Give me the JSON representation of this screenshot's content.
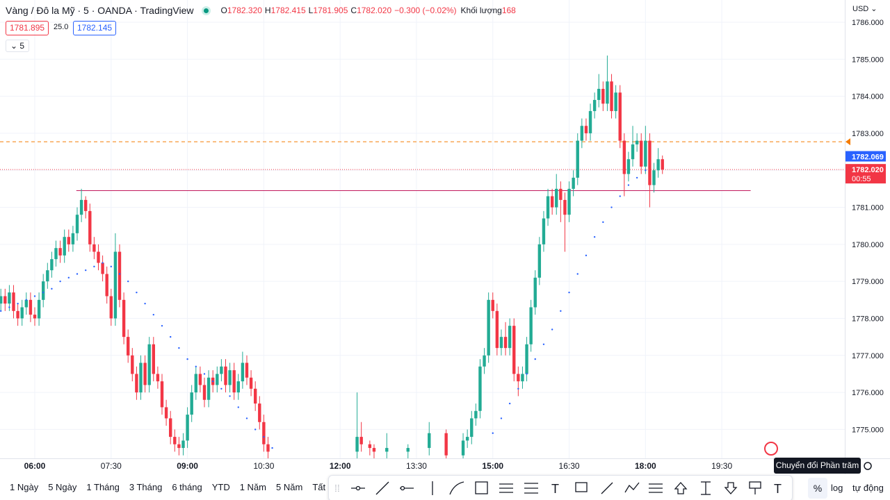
{
  "header": {
    "title": "Vàng / Đô la Mỹ · 5 · OANDA · TradingView",
    "ohlc": [
      {
        "key": "O",
        "value": "1782.320"
      },
      {
        "key": "H",
        "value": "1782.415"
      },
      {
        "key": "L",
        "value": "1781.905"
      },
      {
        "key": "C",
        "value": "1782.020"
      }
    ],
    "change": "−0.300 (−0.02%)",
    "volume_label": "Khối lượng",
    "volume": "168",
    "bid": "1781.895",
    "spread": "25.0",
    "ask": "1782.145",
    "interval": "5",
    "currency": "USD"
  },
  "chart_data": {
    "type": "candlestick",
    "up_color": "#22ab94",
    "down_color": "#f23645",
    "sar_color": "#2962ff",
    "xlim": [
      319,
      1315
    ],
    "xticks": [
      {
        "value": 360,
        "label": "06:00"
      },
      {
        "value": 450,
        "label": "07:30"
      },
      {
        "value": 540,
        "label": "09:00"
      },
      {
        "value": 630,
        "label": "10:30"
      },
      {
        "value": 720,
        "label": "12:00"
      },
      {
        "value": 810,
        "label": "13:30"
      },
      {
        "value": 900,
        "label": "15:00"
      },
      {
        "value": 990,
        "label": "16:30"
      },
      {
        "value": 1080,
        "label": "18:00"
      },
      {
        "value": 1170,
        "label": "19:30"
      }
    ],
    "ylim": [
      1774.22,
      1786.6
    ],
    "yticks": [
      {
        "value": 1775,
        "label": "1775.000"
      },
      {
        "value": 1776,
        "label": "1776.000"
      },
      {
        "value": 1777,
        "label": "1777.000"
      },
      {
        "value": 1778,
        "label": "1778.000"
      },
      {
        "value": 1779,
        "label": "1779.000"
      },
      {
        "value": 1780,
        "label": "1780.000"
      },
      {
        "value": 1781,
        "label": "1781.000"
      },
      {
        "value": 1782,
        "label": "1782.000"
      },
      {
        "value": 1783,
        "label": "1783.000"
      },
      {
        "value": 1784,
        "label": "1784.000"
      },
      {
        "value": 1785,
        "label": "1785.000"
      },
      {
        "value": 1786,
        "label": "1786.000"
      }
    ],
    "grid": true,
    "candles": [
      [
        320,
        1778.4,
        1778.8,
        1778.2,
        1778.6
      ],
      [
        325,
        1778.6,
        1778.8,
        1778.2,
        1778.4
      ],
      [
        330,
        1778.4,
        1778.9,
        1778.2,
        1778.7
      ],
      [
        335,
        1778.7,
        1778.9,
        1778.0,
        1778.2
      ],
      [
        340,
        1778.2,
        1778.4,
        1777.8,
        1778.0
      ],
      [
        345,
        1778.0,
        1778.5,
        1777.8,
        1778.3
      ],
      [
        350,
        1778.3,
        1778.7,
        1778.1,
        1778.5
      ],
      [
        355,
        1778.5,
        1778.7,
        1777.9,
        1778.1
      ],
      [
        360,
        1778.1,
        1778.3,
        1777.8,
        1778.0
      ],
      [
        365,
        1778.0,
        1778.7,
        1777.8,
        1778.5
      ],
      [
        370,
        1778.5,
        1779.2,
        1778.3,
        1779.0
      ],
      [
        375,
        1779.0,
        1779.5,
        1778.8,
        1779.3
      ],
      [
        380,
        1779.3,
        1779.8,
        1779.1,
        1779.6
      ],
      [
        385,
        1779.6,
        1780.1,
        1779.4,
        1779.9
      ],
      [
        390,
        1779.9,
        1780.1,
        1779.5,
        1779.7
      ],
      [
        395,
        1779.7,
        1780.4,
        1779.5,
        1780.2
      ],
      [
        400,
        1780.2,
        1780.4,
        1779.8,
        1780.0
      ],
      [
        405,
        1780.0,
        1780.5,
        1779.8,
        1780.3
      ],
      [
        410,
        1780.3,
        1781.0,
        1780.1,
        1780.8
      ],
      [
        415,
        1780.8,
        1781.5,
        1780.6,
        1781.2
      ],
      [
        420,
        1781.2,
        1781.3,
        1780.7,
        1780.9
      ],
      [
        425,
        1780.9,
        1781.1,
        1779.8,
        1780.0
      ],
      [
        430,
        1780.0,
        1780.2,
        1779.6,
        1779.8
      ],
      [
        435,
        1779.8,
        1780.0,
        1779.3,
        1779.5
      ],
      [
        440,
        1779.5,
        1779.7,
        1779.0,
        1779.2
      ],
      [
        445,
        1779.2,
        1779.4,
        1778.4,
        1778.6
      ],
      [
        450,
        1778.6,
        1778.8,
        1777.8,
        1778.0
      ],
      [
        455,
        1778.0,
        1780.3,
        1777.8,
        1779.8
      ],
      [
        460,
        1779.8,
        1780.0,
        1778.3,
        1778.5
      ],
      [
        465,
        1778.5,
        1778.7,
        1777.3,
        1777.5
      ],
      [
        470,
        1777.5,
        1777.7,
        1776.8,
        1777.0
      ],
      [
        475,
        1777.0,
        1777.2,
        1776.3,
        1776.5
      ],
      [
        480,
        1776.5,
        1776.7,
        1775.8,
        1776.0
      ],
      [
        485,
        1776.0,
        1777.0,
        1775.8,
        1776.8
      ],
      [
        490,
        1776.8,
        1777.0,
        1776.0,
        1776.2
      ],
      [
        495,
        1776.2,
        1777.5,
        1776.0,
        1777.3
      ],
      [
        500,
        1777.3,
        1777.5,
        1776.3,
        1776.5
      ],
      [
        505,
        1776.5,
        1776.7,
        1776.1,
        1776.3
      ],
      [
        510,
        1776.3,
        1776.5,
        1775.4,
        1775.6
      ],
      [
        515,
        1775.6,
        1775.8,
        1775.1,
        1775.3
      ],
      [
        520,
        1775.3,
        1775.5,
        1774.6,
        1774.8
      ],
      [
        525,
        1774.8,
        1775.0,
        1774.4,
        1774.6
      ],
      [
        530,
        1774.6,
        1774.8,
        1774.3,
        1774.5
      ],
      [
        535,
        1774.5,
        1774.9,
        1774.3,
        1774.7
      ],
      [
        540,
        1774.7,
        1775.6,
        1774.5,
        1775.4
      ],
      [
        545,
        1775.4,
        1776.2,
        1775.2,
        1776.0
      ],
      [
        550,
        1776.0,
        1776.7,
        1775.8,
        1776.5
      ],
      [
        555,
        1776.5,
        1776.7,
        1776.0,
        1776.2
      ],
      [
        560,
        1776.2,
        1776.4,
        1775.6,
        1775.8
      ],
      [
        565,
        1775.8,
        1776.6,
        1775.6,
        1776.4
      ],
      [
        570,
        1776.4,
        1776.6,
        1776.0,
        1776.2
      ],
      [
        575,
        1776.2,
        1776.7,
        1776.0,
        1776.5
      ],
      [
        580,
        1776.5,
        1776.9,
        1776.3,
        1776.7
      ],
      [
        585,
        1776.7,
        1776.9,
        1776.0,
        1776.2
      ],
      [
        590,
        1776.2,
        1776.8,
        1776.0,
        1776.6
      ],
      [
        595,
        1776.6,
        1776.8,
        1775.8,
        1776.0
      ],
      [
        600,
        1776.0,
        1776.5,
        1775.8,
        1776.3
      ],
      [
        605,
        1776.3,
        1777.1,
        1776.1,
        1776.8
      ],
      [
        610,
        1776.8,
        1777.0,
        1776.2,
        1776.4
      ],
      [
        615,
        1776.4,
        1776.6,
        1775.9,
        1776.1
      ],
      [
        620,
        1776.1,
        1776.3,
        1775.5,
        1775.7
      ],
      [
        625,
        1775.7,
        1775.9,
        1775.0,
        1775.2
      ],
      [
        630,
        1775.2,
        1775.4,
        1774.4,
        1774.6
      ],
      [
        635,
        1774.6,
        1774.8,
        1774.2,
        1774.4
      ],
      [
        740,
        1774.4,
        1776.0,
        1774.2,
        1774.8
      ],
      [
        745,
        1774.8,
        1775.2,
        1774.4,
        1774.6
      ],
      [
        755,
        1774.6,
        1774.7,
        1774.3,
        1774.5
      ],
      [
        760,
        1774.5,
        1774.6,
        1774.2,
        1774.4
      ],
      [
        775,
        1774.4,
        1774.9,
        1774.2,
        1774.5
      ],
      [
        800,
        1774.4,
        1774.6,
        1774.2,
        1774.5
      ],
      [
        825,
        1774.5,
        1775.2,
        1774.3,
        1774.9
      ],
      [
        845,
        1774.9,
        1775.0,
        1774.1,
        1774.3
      ],
      [
        865,
        1774.3,
        1774.9,
        1774.1,
        1774.7
      ],
      [
        870,
        1774.7,
        1775.0,
        1774.5,
        1774.8
      ],
      [
        875,
        1774.8,
        1775.5,
        1774.6,
        1775.3
      ],
      [
        880,
        1775.3,
        1775.7,
        1775.1,
        1775.5
      ],
      [
        885,
        1775.5,
        1776.9,
        1775.3,
        1776.7
      ],
      [
        890,
        1776.7,
        1777.2,
        1776.5,
        1777.0
      ],
      [
        895,
        1777.0,
        1778.7,
        1776.8,
        1778.5
      ],
      [
        900,
        1778.5,
        1778.7,
        1778.0,
        1778.2
      ],
      [
        905,
        1778.2,
        1778.4,
        1777.0,
        1777.2
      ],
      [
        910,
        1777.2,
        1777.7,
        1777.0,
        1777.5
      ],
      [
        915,
        1777.5,
        1777.9,
        1777.0,
        1777.2
      ],
      [
        920,
        1777.2,
        1778.0,
        1777.0,
        1777.8
      ],
      [
        925,
        1777.8,
        1778.0,
        1776.3,
        1776.5
      ],
      [
        930,
        1776.5,
        1776.7,
        1775.9,
        1776.3
      ],
      [
        935,
        1776.3,
        1776.7,
        1776.1,
        1776.5
      ],
      [
        940,
        1776.5,
        1777.5,
        1776.3,
        1777.3
      ],
      [
        945,
        1777.3,
        1778.5,
        1777.1,
        1778.3
      ],
      [
        950,
        1778.3,
        1779.3,
        1778.1,
        1779.1
      ],
      [
        955,
        1779.1,
        1780.2,
        1778.9,
        1780.0
      ],
      [
        960,
        1780.0,
        1780.9,
        1779.8,
        1780.7
      ],
      [
        965,
        1780.7,
        1781.5,
        1780.5,
        1781.3
      ],
      [
        970,
        1781.3,
        1781.5,
        1780.8,
        1781.0
      ],
      [
        975,
        1781.0,
        1781.9,
        1780.8,
        1781.5
      ],
      [
        980,
        1781.5,
        1781.7,
        1780.6,
        1781.2
      ],
      [
        985,
        1781.2,
        1781.4,
        1779.8,
        1780.8
      ],
      [
        990,
        1780.8,
        1781.7,
        1780.6,
        1781.5
      ],
      [
        995,
        1781.5,
        1782.0,
        1781.3,
        1781.8
      ],
      [
        1000,
        1781.8,
        1783.0,
        1781.6,
        1782.8
      ],
      [
        1005,
        1782.8,
        1783.4,
        1782.6,
        1783.2
      ],
      [
        1010,
        1783.2,
        1783.4,
        1782.8,
        1783.0
      ],
      [
        1015,
        1783.0,
        1783.8,
        1782.8,
        1783.6
      ],
      [
        1020,
        1783.6,
        1784.1,
        1783.4,
        1783.9
      ],
      [
        1025,
        1783.9,
        1784.6,
        1783.7,
        1784.2
      ],
      [
        1030,
        1784.2,
        1784.4,
        1783.6,
        1783.8
      ],
      [
        1035,
        1783.8,
        1785.1,
        1783.6,
        1784.4
      ],
      [
        1040,
        1784.4,
        1784.6,
        1783.4,
        1783.6
      ],
      [
        1045,
        1783.6,
        1784.3,
        1783.4,
        1784.1
      ],
      [
        1050,
        1784.1,
        1784.3,
        1782.6,
        1782.8
      ],
      [
        1055,
        1782.8,
        1783.0,
        1781.3,
        1781.9
      ],
      [
        1060,
        1781.9,
        1782.5,
        1781.7,
        1782.3
      ],
      [
        1065,
        1782.3,
        1783.2,
        1782.1,
        1782.7
      ],
      [
        1070,
        1782.7,
        1783.0,
        1782.5,
        1782.8
      ],
      [
        1075,
        1782.8,
        1783.0,
        1781.9,
        1782.1
      ],
      [
        1080,
        1782.1,
        1783.2,
        1781.9,
        1782.8
      ],
      [
        1085,
        1782.8,
        1783.0,
        1781.0,
        1781.6
      ],
      [
        1090,
        1781.6,
        1782.2,
        1781.4,
        1782.0
      ],
      [
        1095,
        1782.0,
        1782.6,
        1781.8,
        1782.3
      ],
      [
        1100,
        1782.3,
        1782.4,
        1781.9,
        1782.02
      ]
    ],
    "sar": [
      [
        320,
        1778.2
      ],
      [
        330,
        1778.3
      ],
      [
        340,
        1778.4
      ],
      [
        350,
        1778.5
      ],
      [
        360,
        1778.6
      ],
      [
        370,
        1778.7
      ],
      [
        380,
        1778.8
      ],
      [
        390,
        1779.0
      ],
      [
        400,
        1779.1
      ],
      [
        410,
        1779.2
      ],
      [
        420,
        1779.3
      ],
      [
        430,
        1779.4
      ],
      [
        440,
        1779.5
      ],
      [
        450,
        1779.4
      ],
      [
        460,
        1779.2
      ],
      [
        470,
        1779.0
      ],
      [
        480,
        1778.7
      ],
      [
        490,
        1778.4
      ],
      [
        500,
        1778.1
      ],
      [
        510,
        1777.8
      ],
      [
        520,
        1777.5
      ],
      [
        530,
        1777.2
      ],
      [
        540,
        1776.9
      ],
      [
        550,
        1776.7
      ],
      [
        560,
        1776.5
      ],
      [
        570,
        1776.3
      ],
      [
        580,
        1776.1
      ],
      [
        590,
        1775.9
      ],
      [
        600,
        1775.6
      ],
      [
        610,
        1775.3
      ],
      [
        620,
        1775.0
      ],
      [
        630,
        1774.8
      ],
      [
        640,
        1774.5
      ],
      [
        900,
        1774.9
      ],
      [
        910,
        1775.3
      ],
      [
        920,
        1775.7
      ],
      [
        930,
        1776.1
      ],
      [
        940,
        1776.5
      ],
      [
        950,
        1776.9
      ],
      [
        960,
        1777.3
      ],
      [
        970,
        1777.7
      ],
      [
        980,
        1778.2
      ],
      [
        990,
        1778.7
      ],
      [
        1000,
        1779.2
      ],
      [
        1010,
        1779.7
      ],
      [
        1020,
        1780.2
      ],
      [
        1030,
        1780.6
      ],
      [
        1040,
        1781.0
      ],
      [
        1050,
        1781.3
      ],
      [
        1060,
        1781.6
      ],
      [
        1070,
        1781.8
      ],
      [
        1080,
        1782.0
      ]
    ],
    "lines": [
      {
        "value": 1782.77,
        "color": "#f57c00",
        "style": "dashed"
      },
      {
        "value": 1782.02,
        "color": "#f23645",
        "style": "dotted"
      },
      {
        "value": 1781.45,
        "color": "#c2185b",
        "style": "solid",
        "x": [
          409,
          1204
        ]
      }
    ],
    "price_labels": [
      {
        "value": 1782.069,
        "label": "1782.069",
        "color": "#2962ff"
      },
      {
        "value": 1782.02,
        "label": "1782.020",
        "countdown": "00:55",
        "color": "#f23645"
      }
    ]
  },
  "toolbar": {
    "ranges": [
      "1 Ngày",
      "5 Ngày",
      "1 Tháng",
      "3 Tháng",
      "6 tháng",
      "YTD",
      "1 Năm",
      "5 Năm",
      "Tất cả"
    ],
    "percent": "%",
    "log": "log",
    "auto": "tự động",
    "tooltip": "Chuyển đổi Phần trăm"
  }
}
